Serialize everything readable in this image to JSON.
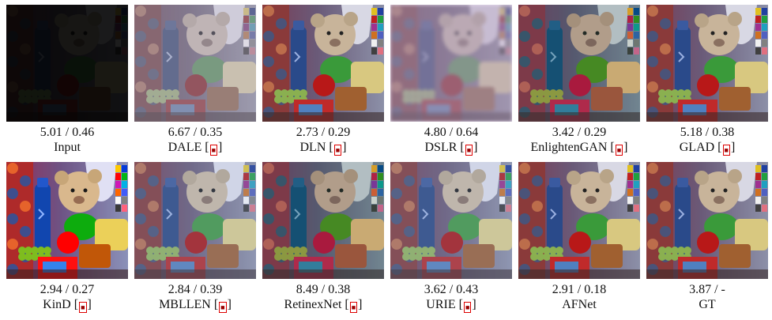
{
  "figure": {
    "panels": [
      {
        "metric": "5.01 / 0.46",
        "label": "Input",
        "cite": "",
        "tone": "input"
      },
      {
        "metric": "6.67 / 0.35",
        "label": "DALE",
        "cite": "",
        "tone": "pale"
      },
      {
        "metric": "2.73 / 0.29",
        "label": "DLN",
        "cite": "",
        "tone": "normal"
      },
      {
        "metric": "4.80 / 0.64",
        "label": "DSLR",
        "cite": "",
        "tone": "blurry"
      },
      {
        "metric": "3.42 / 0.29",
        "label": "EnlightenGAN",
        "cite": "",
        "tone": "green"
      },
      {
        "metric": "5.18 / 0.38",
        "label": "GLAD",
        "cite": "",
        "tone": "normal"
      },
      {
        "metric": "2.94 / 0.27",
        "label": "KinD",
        "cite": "",
        "tone": "vivid"
      },
      {
        "metric": "2.84 / 0.39",
        "label": "MBLLEN",
        "cite": "",
        "tone": "cool"
      },
      {
        "metric": "8.49 / 0.38",
        "label": "RetinexNet",
        "cite": "",
        "tone": "green"
      },
      {
        "metric": "3.62 / 0.43",
        "label": "URIE",
        "cite": "",
        "tone": "cool"
      },
      {
        "metric": "2.91 / 0.18",
        "label": "AFNet",
        "cite": "",
        "tone": "normal"
      },
      {
        "metric": "3.87 / -",
        "label": "GT",
        "cite": "",
        "tone": "normal"
      }
    ],
    "cite_badge_color": "#dd0000"
  }
}
